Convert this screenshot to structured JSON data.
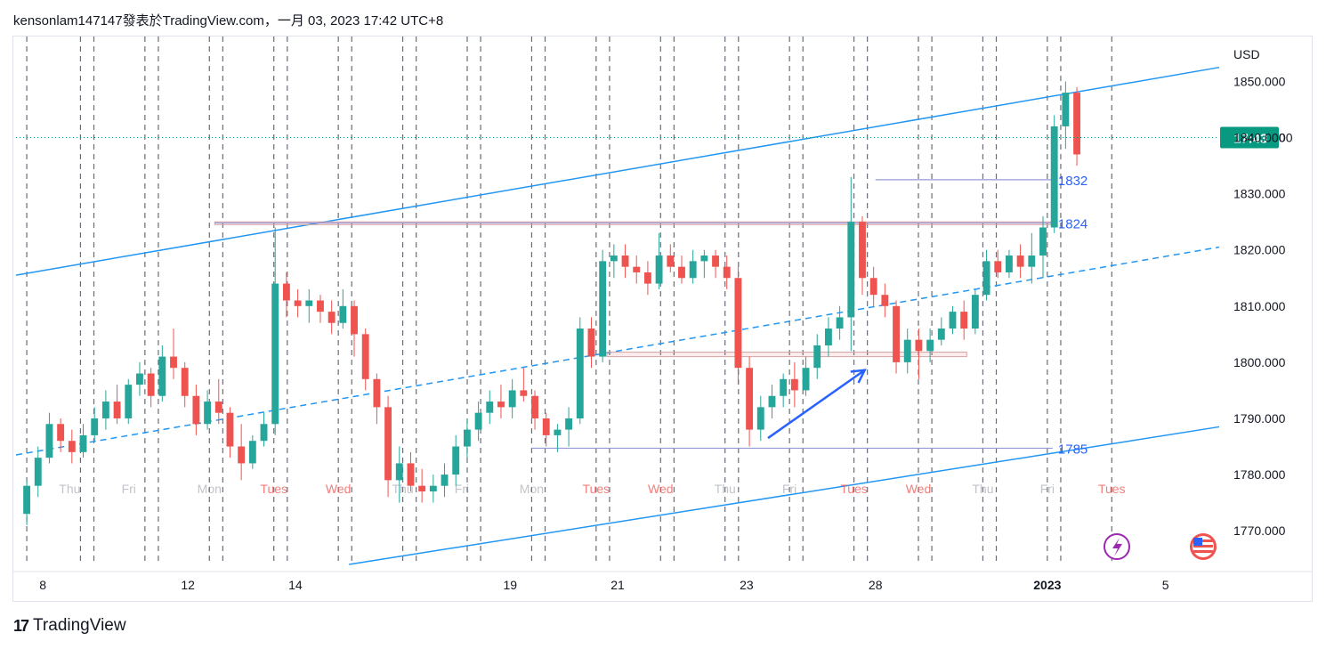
{
  "header": {
    "text": "kensonlam147147發表於TradingView.com，一月 03, 2023 17:42 UTC+8"
  },
  "footer": {
    "logo": "17",
    "brand": "TradingView"
  },
  "colors": {
    "up": "#26a69a",
    "down": "#ef5350",
    "channel": "#2196f3",
    "grid": "#131722",
    "level": "#9598d8",
    "arrow": "#2962ff",
    "tag": "#089981"
  },
  "icons": [
    "lightning-icon",
    "flag-icon"
  ],
  "chart_data": {
    "type": "candlestick",
    "currency": "USD",
    "ylim": [
      1764,
      1858
    ],
    "y_ticks": [
      "1850.000",
      "1840.000",
      "1830.000",
      "1820.000",
      "1810.000",
      "1800.000",
      "1790.000",
      "1780.000",
      "1770.000"
    ],
    "y_tick_values": [
      1850,
      1840,
      1830,
      1820,
      1810,
      1800,
      1790,
      1780,
      1770
    ],
    "x_dates": [
      {
        "label": "8",
        "x": 0.3
      },
      {
        "label": "12",
        "x": 3.0
      },
      {
        "label": "14",
        "x": 5.0
      },
      {
        "label": "19",
        "x": 9.0
      },
      {
        "label": "21",
        "x": 11.0
      },
      {
        "label": "23",
        "x": 13.4
      },
      {
        "label": "28",
        "x": 15.8
      },
      {
        "label": "2023",
        "x": 19.0
      },
      {
        "label": "5",
        "x": 21.2
      }
    ],
    "session_labels": [
      {
        "label": "Thu",
        "x": 0.8,
        "kind": "weekday"
      },
      {
        "label": "Fri",
        "x": 1.9,
        "kind": "weekday"
      },
      {
        "label": "Mon",
        "x": 3.4,
        "kind": "weekday"
      },
      {
        "label": "Tues",
        "x": 4.6,
        "kind": "tuesday"
      },
      {
        "label": "Wed",
        "x": 5.8,
        "kind": "tuesday"
      },
      {
        "label": "Thu",
        "x": 7.0,
        "kind": "weekday"
      },
      {
        "label": "Fri",
        "x": 8.1,
        "kind": "weekday"
      },
      {
        "label": "Mon",
        "x": 9.4,
        "kind": "weekday"
      },
      {
        "label": "Tues",
        "x": 10.6,
        "kind": "tuesday"
      },
      {
        "label": "Wed",
        "x": 11.8,
        "kind": "tuesday"
      },
      {
        "label": "Thu",
        "x": 13.0,
        "kind": "weekday"
      },
      {
        "label": "Fri",
        "x": 14.2,
        "kind": "weekday"
      },
      {
        "label": "Tues",
        "x": 15.4,
        "kind": "tuesday"
      },
      {
        "label": "Wed",
        "x": 16.6,
        "kind": "tuesday"
      },
      {
        "label": "Thu",
        "x": 17.8,
        "kind": "weekday"
      },
      {
        "label": "Fri",
        "x": 19.0,
        "kind": "weekday"
      },
      {
        "label": "Tues",
        "x": 20.2,
        "kind": "tuesday"
      }
    ],
    "session_lines": [
      0.0,
      1.0,
      1.25,
      2.2,
      2.45,
      3.4,
      3.65,
      4.6,
      4.85,
      5.8,
      6.05,
      7.0,
      7.25,
      8.2,
      8.45,
      9.4,
      9.65,
      10.6,
      10.85,
      11.8,
      12.05,
      13.0,
      13.25,
      14.2,
      14.45,
      15.4,
      15.65,
      16.6,
      16.85,
      17.8,
      18.05,
      19.0,
      19.25,
      20.2
    ],
    "candles": [
      {
        "o": 1773,
        "h": 1779,
        "l": 1771,
        "c": 1778
      },
      {
        "o": 1778,
        "h": 1785,
        "l": 1776,
        "c": 1783
      },
      {
        "o": 1783,
        "h": 1791,
        "l": 1782,
        "c": 1789
      },
      {
        "o": 1789,
        "h": 1790,
        "l": 1784,
        "c": 1786
      },
      {
        "o": 1786,
        "h": 1788,
        "l": 1782,
        "c": 1784
      },
      {
        "o": 1784,
        "h": 1789,
        "l": 1783,
        "c": 1787
      },
      {
        "o": 1787,
        "h": 1792,
        "l": 1786,
        "c": 1790
      },
      {
        "o": 1790,
        "h": 1795,
        "l": 1788,
        "c": 1793
      },
      {
        "o": 1793,
        "h": 1796,
        "l": 1789,
        "c": 1790
      },
      {
        "o": 1790,
        "h": 1797,
        "l": 1789,
        "c": 1796
      },
      {
        "o": 1796,
        "h": 1800,
        "l": 1794,
        "c": 1798
      },
      {
        "o": 1798,
        "h": 1799,
        "l": 1792,
        "c": 1794
      },
      {
        "o": 1794,
        "h": 1803,
        "l": 1793,
        "c": 1801
      },
      {
        "o": 1801,
        "h": 1806,
        "l": 1797,
        "c": 1799
      },
      {
        "o": 1799,
        "h": 1800,
        "l": 1792,
        "c": 1794
      },
      {
        "o": 1794,
        "h": 1796,
        "l": 1787,
        "c": 1789
      },
      {
        "o": 1789,
        "h": 1795,
        "l": 1788,
        "c": 1793
      },
      {
        "o": 1793,
        "h": 1797,
        "l": 1789,
        "c": 1791
      },
      {
        "o": 1791,
        "h": 1792,
        "l": 1783,
        "c": 1785
      },
      {
        "o": 1785,
        "h": 1789,
        "l": 1779,
        "c": 1782
      },
      {
        "o": 1782,
        "h": 1787,
        "l": 1781,
        "c": 1786
      },
      {
        "o": 1786,
        "h": 1791,
        "l": 1785,
        "c": 1789
      },
      {
        "o": 1789,
        "h": 1824,
        "l": 1787,
        "c": 1814
      },
      {
        "o": 1814,
        "h": 1816,
        "l": 1808,
        "c": 1811
      },
      {
        "o": 1811,
        "h": 1813,
        "l": 1808,
        "c": 1810
      },
      {
        "o": 1810,
        "h": 1813,
        "l": 1807,
        "c": 1811
      },
      {
        "o": 1811,
        "h": 1812,
        "l": 1807,
        "c": 1809
      },
      {
        "o": 1809,
        "h": 1811,
        "l": 1805,
        "c": 1807
      },
      {
        "o": 1807,
        "h": 1813,
        "l": 1806,
        "c": 1810
      },
      {
        "o": 1810,
        "h": 1811,
        "l": 1801,
        "c": 1805
      },
      {
        "o": 1805,
        "h": 1806,
        "l": 1795,
        "c": 1797
      },
      {
        "o": 1797,
        "h": 1798,
        "l": 1789,
        "c": 1792
      },
      {
        "o": 1792,
        "h": 1794,
        "l": 1776,
        "c": 1779
      },
      {
        "o": 1779,
        "h": 1785,
        "l": 1775,
        "c": 1782
      },
      {
        "o": 1782,
        "h": 1784,
        "l": 1777,
        "c": 1778
      },
      {
        "o": 1778,
        "h": 1781,
        "l": 1775,
        "c": 1777
      },
      {
        "o": 1777,
        "h": 1780,
        "l": 1775,
        "c": 1778
      },
      {
        "o": 1778,
        "h": 1782,
        "l": 1776,
        "c": 1780
      },
      {
        "o": 1780,
        "h": 1787,
        "l": 1778,
        "c": 1785
      },
      {
        "o": 1785,
        "h": 1790,
        "l": 1783,
        "c": 1788
      },
      {
        "o": 1788,
        "h": 1793,
        "l": 1786,
        "c": 1791
      },
      {
        "o": 1791,
        "h": 1795,
        "l": 1789,
        "c": 1793
      },
      {
        "o": 1793,
        "h": 1796,
        "l": 1790,
        "c": 1792
      },
      {
        "o": 1792,
        "h": 1797,
        "l": 1790,
        "c": 1795
      },
      {
        "o": 1795,
        "h": 1799,
        "l": 1793,
        "c": 1794
      },
      {
        "o": 1794,
        "h": 1795,
        "l": 1788,
        "c": 1790
      },
      {
        "o": 1790,
        "h": 1791,
        "l": 1785,
        "c": 1787
      },
      {
        "o": 1787,
        "h": 1789,
        "l": 1784,
        "c": 1788
      },
      {
        "o": 1788,
        "h": 1792,
        "l": 1785,
        "c": 1790
      },
      {
        "o": 1790,
        "h": 1808,
        "l": 1789,
        "c": 1806
      },
      {
        "o": 1806,
        "h": 1808,
        "l": 1799,
        "c": 1801
      },
      {
        "o": 1801,
        "h": 1820,
        "l": 1800,
        "c": 1818
      },
      {
        "o": 1818,
        "h": 1821,
        "l": 1815,
        "c": 1819
      },
      {
        "o": 1819,
        "h": 1821,
        "l": 1815,
        "c": 1817
      },
      {
        "o": 1817,
        "h": 1819,
        "l": 1814,
        "c": 1816
      },
      {
        "o": 1816,
        "h": 1818,
        "l": 1812,
        "c": 1814
      },
      {
        "o": 1814,
        "h": 1823,
        "l": 1813,
        "c": 1819
      },
      {
        "o": 1819,
        "h": 1821,
        "l": 1816,
        "c": 1817
      },
      {
        "o": 1817,
        "h": 1819,
        "l": 1814,
        "c": 1815
      },
      {
        "o": 1815,
        "h": 1820,
        "l": 1814,
        "c": 1818
      },
      {
        "o": 1818,
        "h": 1820,
        "l": 1815,
        "c": 1819
      },
      {
        "o": 1819,
        "h": 1820,
        "l": 1815,
        "c": 1817
      },
      {
        "o": 1817,
        "h": 1819,
        "l": 1813,
        "c": 1815
      },
      {
        "o": 1815,
        "h": 1817,
        "l": 1796,
        "c": 1799
      },
      {
        "o": 1799,
        "h": 1801,
        "l": 1785,
        "c": 1788
      },
      {
        "o": 1788,
        "h": 1794,
        "l": 1786,
        "c": 1792
      },
      {
        "o": 1792,
        "h": 1796,
        "l": 1790,
        "c": 1794
      },
      {
        "o": 1794,
        "h": 1798,
        "l": 1792,
        "c": 1797
      },
      {
        "o": 1797,
        "h": 1800,
        "l": 1792,
        "c": 1795
      },
      {
        "o": 1795,
        "h": 1801,
        "l": 1794,
        "c": 1799
      },
      {
        "o": 1799,
        "h": 1805,
        "l": 1797,
        "c": 1803
      },
      {
        "o": 1803,
        "h": 1808,
        "l": 1801,
        "c": 1806
      },
      {
        "o": 1806,
        "h": 1810,
        "l": 1804,
        "c": 1808
      },
      {
        "o": 1808,
        "h": 1833,
        "l": 1802,
        "c": 1825
      },
      {
        "o": 1825,
        "h": 1826,
        "l": 1812,
        "c": 1815
      },
      {
        "o": 1815,
        "h": 1817,
        "l": 1810,
        "c": 1812
      },
      {
        "o": 1812,
        "h": 1814,
        "l": 1808,
        "c": 1810
      },
      {
        "o": 1810,
        "h": 1811,
        "l": 1798,
        "c": 1800
      },
      {
        "o": 1800,
        "h": 1806,
        "l": 1798,
        "c": 1804
      },
      {
        "o": 1804,
        "h": 1806,
        "l": 1797,
        "c": 1802
      },
      {
        "o": 1802,
        "h": 1806,
        "l": 1800,
        "c": 1804
      },
      {
        "o": 1804,
        "h": 1808,
        "l": 1803,
        "c": 1806
      },
      {
        "o": 1806,
        "h": 1810,
        "l": 1805,
        "c": 1809
      },
      {
        "o": 1809,
        "h": 1811,
        "l": 1804,
        "c": 1806
      },
      {
        "o": 1806,
        "h": 1813,
        "l": 1805,
        "c": 1812
      },
      {
        "o": 1812,
        "h": 1820,
        "l": 1811,
        "c": 1818
      },
      {
        "o": 1818,
        "h": 1820,
        "l": 1815,
        "c": 1816
      },
      {
        "o": 1816,
        "h": 1820,
        "l": 1815,
        "c": 1819
      },
      {
        "o": 1819,
        "h": 1821,
        "l": 1815,
        "c": 1817
      },
      {
        "o": 1817,
        "h": 1823,
        "l": 1814,
        "c": 1819
      },
      {
        "o": 1819,
        "h": 1826,
        "l": 1815,
        "c": 1824
      },
      {
        "o": 1824,
        "h": 1844,
        "l": 1823,
        "c": 1842
      },
      {
        "o": 1842,
        "h": 1850,
        "l": 1838,
        "c": 1848
      },
      {
        "o": 1848,
        "h": 1849,
        "l": 1835,
        "c": 1837
      }
    ],
    "channel": {
      "upper": [
        [
          -0.2,
          1815.5
        ],
        [
          22.2,
          1852.5
        ]
      ],
      "middle": [
        [
          -0.2,
          1783.5
        ],
        [
          22.2,
          1820.5
        ]
      ],
      "lower": [
        [
          6.0,
          1764
        ],
        [
          22.2,
          1788.5
        ]
      ]
    },
    "levels": [
      {
        "label": "1832",
        "value": 1832.5,
        "x_from": 15.8,
        "x_to": 19.1
      },
      {
        "label": "1824",
        "value": 1824.8,
        "x_from": 3.5,
        "x_to": 19.1
      },
      {
        "label": "1785",
        "value": 1784.7,
        "x_from": 9.4,
        "x_to": 19.1
      }
    ],
    "zones": [
      {
        "value_top": 1801.8,
        "value_bottom": 1801.0,
        "x_from": 10.8,
        "x_to": 17.5
      },
      {
        "value_top": 1825.0,
        "value_bottom": 1824.5,
        "x_from": 3.5,
        "x_to": 19.1
      }
    ],
    "arrow": {
      "from": [
        13.8,
        1786.5
      ],
      "to": [
        15.6,
        1798.6
      ]
    },
    "current_price": {
      "value": 1840,
      "time_tag": "17:43",
      "visible_value": "00"
    }
  }
}
